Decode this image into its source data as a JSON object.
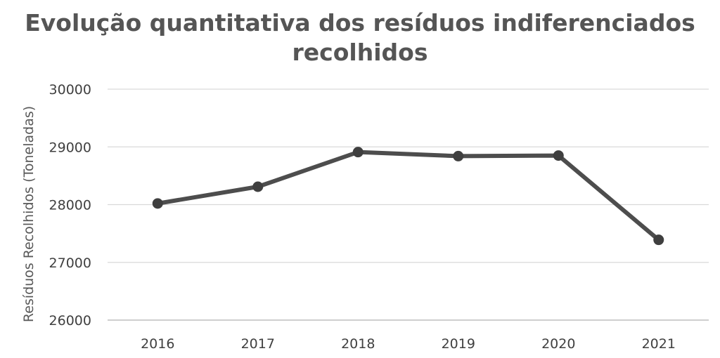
{
  "chart_data": {
    "type": "line",
    "title_line1": "Evolução quantitativa dos resíduos indiferenciados",
    "title_line2": "recolhidos",
    "xlabel": "",
    "ylabel": "Resíduos Recolhidos (Toneladas)",
    "categories": [
      "2016",
      "2017",
      "2018",
      "2019",
      "2020",
      "2021"
    ],
    "series": [
      {
        "values": [
          28020,
          28310,
          28910,
          28840,
          28850,
          27390
        ]
      }
    ],
    "ylim": [
      26000,
      30000
    ],
    "yticks": [
      "26000",
      "27000",
      "28000",
      "29000",
      "30000"
    ],
    "grid": true,
    "legend": "none",
    "colors": {
      "line": "#4d4d4d",
      "marker": "#3f3f3f",
      "grid": "#d9d9d9",
      "axis": "#bfbfbf"
    }
  }
}
